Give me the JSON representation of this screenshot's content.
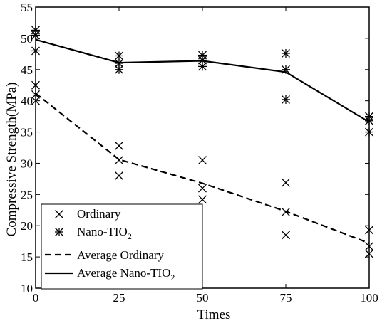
{
  "chart_data": {
    "type": "line",
    "xlabel": "Times",
    "ylabel": "Compressive Strength(MPa)",
    "xlim": [
      0,
      100
    ],
    "ylim": [
      10,
      55
    ],
    "xticks": [
      "0",
      "25",
      "50",
      "75",
      "100"
    ],
    "yticks": [
      "10",
      "15",
      "20",
      "25",
      "30",
      "35",
      "40",
      "45",
      "50",
      "55"
    ],
    "grid": false,
    "legend_position": "bottom-left",
    "legend": {
      "ordinary": "Ordinary",
      "nano_prefix": "Nano-TIO",
      "nano_sub": "2",
      "avg_ordinary": "Average Ordinary",
      "avg_nano_prefix": "Average Nano-TIO",
      "avg_nano_sub": "2"
    },
    "series": [
      {
        "name": "Ordinary",
        "marker": "x",
        "points": [
          {
            "x": 0,
            "y": 40.0
          },
          {
            "x": 0,
            "y": 41.0
          },
          {
            "x": 0,
            "y": 42.5
          },
          {
            "x": 25,
            "y": 28.0
          },
          {
            "x": 25,
            "y": 30.5
          },
          {
            "x": 25,
            "y": 32.8
          },
          {
            "x": 50,
            "y": 24.2
          },
          {
            "x": 50,
            "y": 26.0
          },
          {
            "x": 50,
            "y": 30.5
          },
          {
            "x": 75,
            "y": 18.5
          },
          {
            "x": 75,
            "y": 22.2
          },
          {
            "x": 75,
            "y": 26.9
          },
          {
            "x": 100,
            "y": 15.5
          },
          {
            "x": 100,
            "y": 16.7
          },
          {
            "x": 100,
            "y": 19.3
          }
        ]
      },
      {
        "name": "Nano-TIO2",
        "marker": "asterisk",
        "points": [
          {
            "x": 0,
            "y": 48.0
          },
          {
            "x": 0,
            "y": 50.5
          },
          {
            "x": 0,
            "y": 51.3
          },
          {
            "x": 25,
            "y": 45.0
          },
          {
            "x": 25,
            "y": 46.0
          },
          {
            "x": 25,
            "y": 47.2
          },
          {
            "x": 50,
            "y": 45.5
          },
          {
            "x": 50,
            "y": 46.5
          },
          {
            "x": 50,
            "y": 47.3
          },
          {
            "x": 75,
            "y": 40.2
          },
          {
            "x": 75,
            "y": 45.0
          },
          {
            "x": 75,
            "y": 47.6
          },
          {
            "x": 100,
            "y": 35.0
          },
          {
            "x": 100,
            "y": 36.8
          },
          {
            "x": 100,
            "y": 37.5
          }
        ]
      },
      {
        "name": "Average Ordinary",
        "line": "dashed",
        "x": [
          0,
          25,
          50,
          75,
          100
        ],
        "y": [
          41.2,
          30.6,
          26.8,
          22.3,
          17.2
        ]
      },
      {
        "name": "Average Nano-TIO2",
        "line": "solid",
        "x": [
          0,
          25,
          50,
          75,
          100
        ],
        "y": [
          49.8,
          46.1,
          46.4,
          44.6,
          36.6
        ]
      }
    ],
    "colors": {
      "ink": "#000000",
      "background": "#ffffff"
    }
  }
}
